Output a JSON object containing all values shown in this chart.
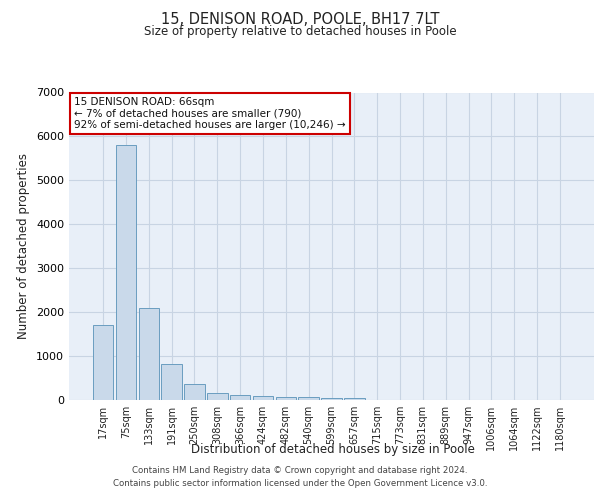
{
  "title1": "15, DENISON ROAD, POOLE, BH17 7LT",
  "title2": "Size of property relative to detached houses in Poole",
  "xlabel": "Distribution of detached houses by size in Poole",
  "ylabel": "Number of detached properties",
  "categories": [
    "17sqm",
    "75sqm",
    "133sqm",
    "191sqm",
    "250sqm",
    "308sqm",
    "366sqm",
    "424sqm",
    "482sqm",
    "540sqm",
    "599sqm",
    "657sqm",
    "715sqm",
    "773sqm",
    "831sqm",
    "889sqm",
    "947sqm",
    "1006sqm",
    "1064sqm",
    "1122sqm",
    "1180sqm"
  ],
  "values": [
    1700,
    5800,
    2100,
    830,
    370,
    160,
    120,
    80,
    70,
    60,
    50,
    40,
    0,
    0,
    0,
    0,
    0,
    0,
    0,
    0,
    0
  ],
  "bar_color": "#c9d9ea",
  "bar_edge_color": "#6a9dc0",
  "annotation_box_color": "#ffffff",
  "annotation_border_color": "#cc0000",
  "annotation_text_line1": "15 DENISON ROAD: 66sqm",
  "annotation_text_line2": "← 7% of detached houses are smaller (790)",
  "annotation_text_line3": "92% of semi-detached houses are larger (10,246) →",
  "grid_color": "#c8d4e3",
  "background_color": "#e8eff8",
  "ylim": [
    0,
    7000
  ],
  "yticks": [
    0,
    1000,
    2000,
    3000,
    4000,
    5000,
    6000,
    7000
  ],
  "footer_line1": "Contains HM Land Registry data © Crown copyright and database right 2024.",
  "footer_line2": "Contains public sector information licensed under the Open Government Licence v3.0."
}
